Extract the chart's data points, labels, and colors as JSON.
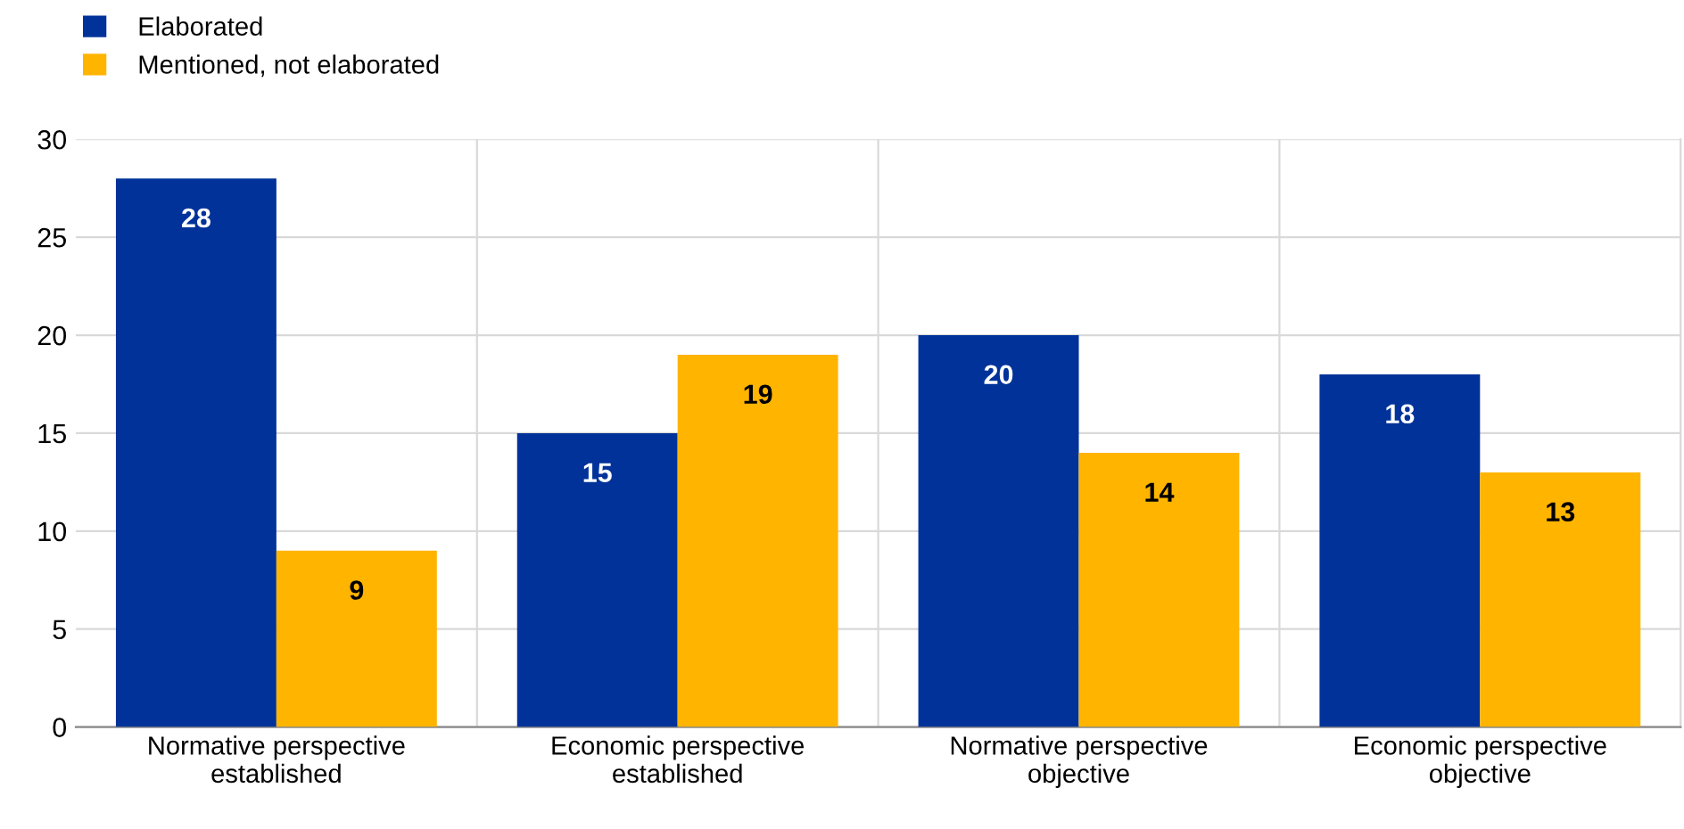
{
  "chart_data": {
    "type": "bar",
    "categories": [
      "Normative perspective\nestablished",
      "Economic perspective\nestablished",
      "Normative perspective\nobjective",
      "Economic perspective\nobjective"
    ],
    "series": [
      {
        "name": "Elaborated",
        "color": "#003299",
        "values": [
          28,
          15,
          20,
          18
        ]
      },
      {
        "name": "Mentioned, not elaborated",
        "color": "#ffb400",
        "values": [
          9,
          19,
          14,
          13
        ]
      }
    ],
    "ylim": [
      0,
      30
    ],
    "yticks": [
      0,
      5,
      10,
      15,
      20,
      25,
      30
    ],
    "grid": true,
    "legend": "top left",
    "data_labels": true
  }
}
